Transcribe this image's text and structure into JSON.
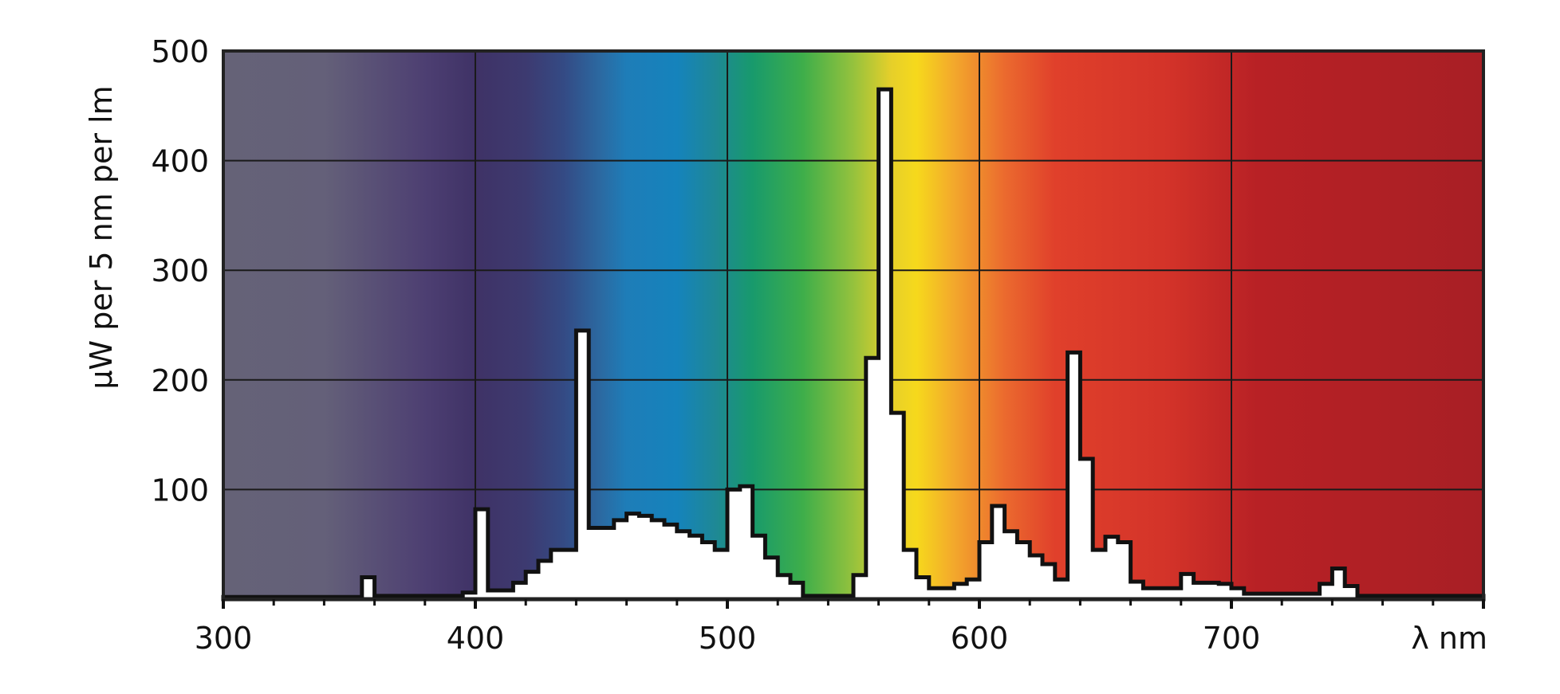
{
  "chart_data": {
    "type": "area",
    "title": "",
    "xlabel": "λ nm",
    "ylabel": "μW per 5 nm per lm",
    "xlim": [
      300,
      800
    ],
    "ylim": [
      0,
      500
    ],
    "x_ticks": [
      300,
      400,
      500,
      600,
      700
    ],
    "x_tick_labels": [
      "300",
      "400",
      "500",
      "600",
      "700"
    ],
    "y_ticks": [
      100,
      200,
      300,
      400,
      500
    ],
    "y_tick_labels": [
      "100",
      "200",
      "300",
      "400",
      "500"
    ],
    "grid": true,
    "background": "visible spectrum color gradient",
    "series": [
      {
        "step_width_nm": 5,
        "x": [
          300,
          305,
          310,
          315,
          320,
          325,
          330,
          335,
          340,
          345,
          350,
          355,
          360,
          365,
          370,
          375,
          380,
          385,
          390,
          395,
          400,
          405,
          410,
          415,
          420,
          425,
          430,
          435,
          440,
          445,
          450,
          455,
          460,
          465,
          470,
          475,
          480,
          485,
          490,
          495,
          500,
          505,
          510,
          515,
          520,
          525,
          530,
          535,
          540,
          545,
          550,
          555,
          560,
          565,
          570,
          575,
          580,
          585,
          590,
          595,
          600,
          605,
          610,
          615,
          620,
          625,
          630,
          635,
          640,
          645,
          650,
          655,
          660,
          665,
          670,
          675,
          680,
          685,
          690,
          695,
          700,
          705,
          710,
          715,
          720,
          725,
          730,
          735,
          740,
          745,
          750,
          755,
          760,
          765,
          770,
          775,
          780,
          785,
          790,
          795
        ],
        "values": [
          2,
          2,
          2,
          2,
          2,
          2,
          2,
          2,
          2,
          2,
          2,
          20,
          3,
          3,
          3,
          3,
          3,
          3,
          3,
          6,
          82,
          8,
          8,
          15,
          25,
          35,
          45,
          45,
          245,
          65,
          65,
          72,
          78,
          76,
          72,
          68,
          62,
          58,
          52,
          45,
          100,
          103,
          58,
          38,
          22,
          15,
          3,
          3,
          3,
          3,
          22,
          220,
          465,
          170,
          45,
          20,
          10,
          10,
          14,
          18,
          52,
          85,
          62,
          52,
          40,
          32,
          18,
          225,
          128,
          45,
          57,
          52,
          16,
          10,
          10,
          10,
          23,
          15,
          15,
          14,
          10,
          5,
          5,
          5,
          5,
          5,
          5,
          14,
          28,
          12,
          3,
          3,
          3,
          3,
          3,
          3,
          3,
          3,
          3,
          3
        ]
      }
    ]
  }
}
